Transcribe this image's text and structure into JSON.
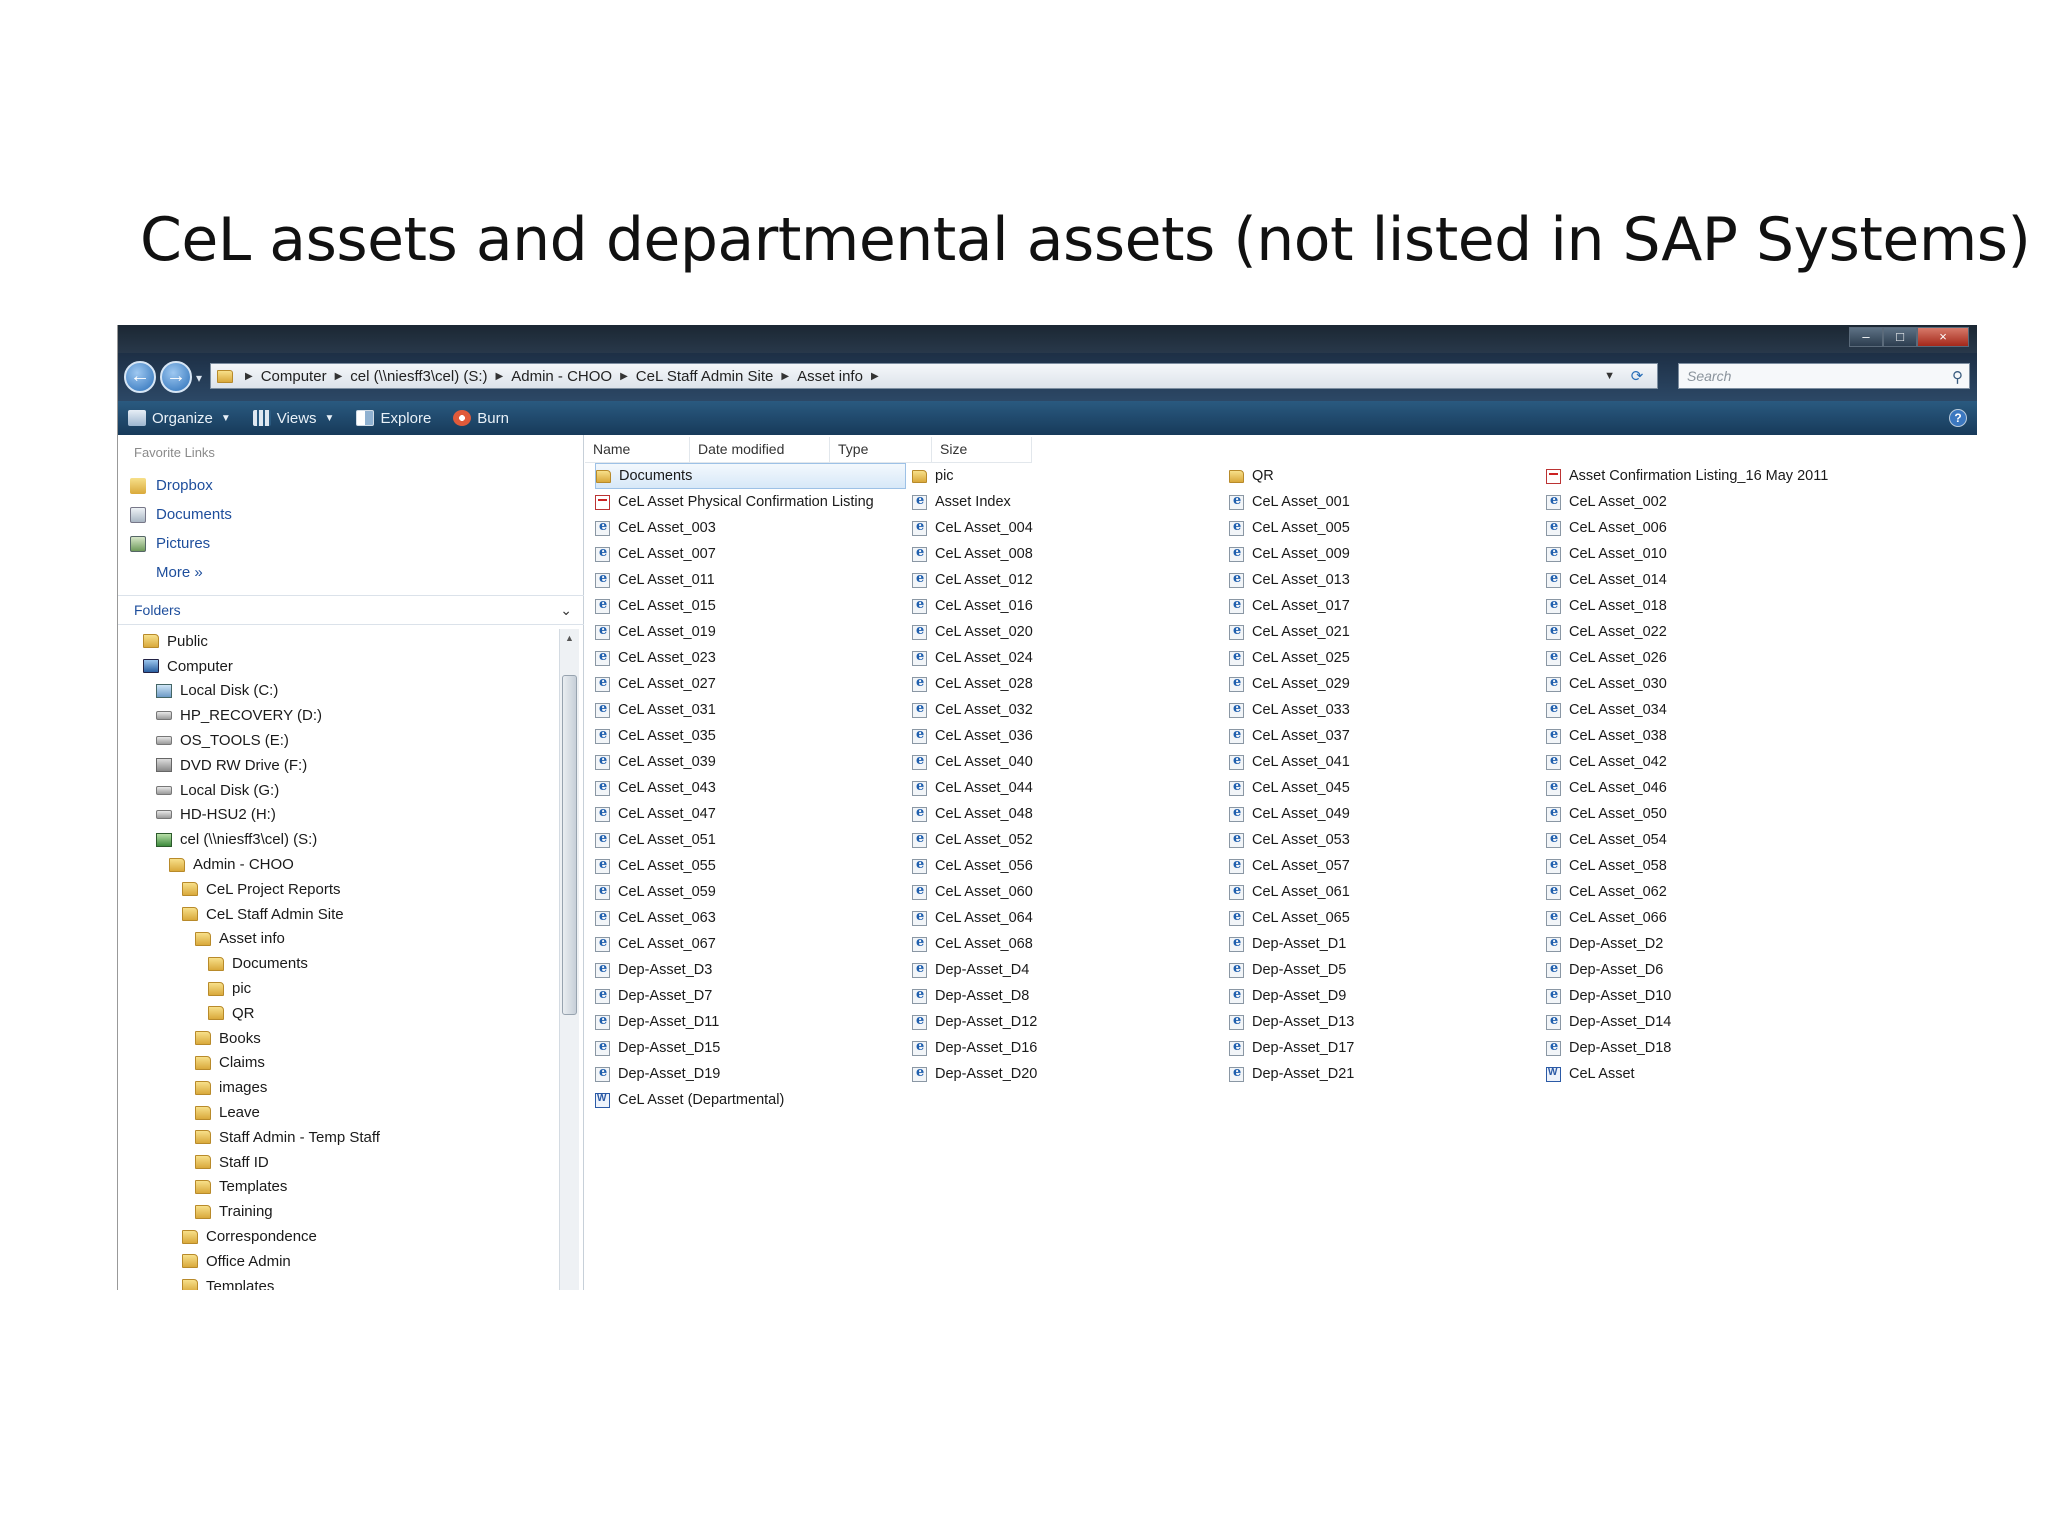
{
  "slide": {
    "title": "CeL assets and departmental assets (not listed in SAP Systems)"
  },
  "window": {
    "controls": {
      "minimize": "–",
      "maximize": "□",
      "close": "×"
    },
    "nav": {
      "back": "←",
      "forward": "→",
      "recent": "▾"
    },
    "breadcrumbs": [
      "Computer",
      "cel (\\\\niesff3\\cel) (S:)",
      "Admin - CHOO",
      "CeL Staff Admin Site",
      "Asset info"
    ],
    "search_placeholder": "Search",
    "toolbar": {
      "organize": "Organize",
      "views": "Views",
      "explore": "Explore",
      "burn": "Burn",
      "help": "?"
    },
    "favorites": {
      "title": "Favorite Links",
      "items": [
        "Dropbox",
        "Documents",
        "Pictures"
      ],
      "more": "More  »"
    },
    "folders_title": "Folders",
    "tree": [
      {
        "label": "Public",
        "indent": 1,
        "icon": "folder"
      },
      {
        "label": "Computer",
        "indent": 1,
        "icon": "computer"
      },
      {
        "label": "Local Disk (C:)",
        "indent": 2,
        "icon": "windisk"
      },
      {
        "label": "HP_RECOVERY (D:)",
        "indent": 2,
        "icon": "drive"
      },
      {
        "label": "OS_TOOLS (E:)",
        "indent": 2,
        "icon": "drive"
      },
      {
        "label": "DVD RW Drive (F:)",
        "indent": 2,
        "icon": "dvd"
      },
      {
        "label": "Local Disk (G:)",
        "indent": 2,
        "icon": "drive"
      },
      {
        "label": "HD-HSU2 (H:)",
        "indent": 2,
        "icon": "drive"
      },
      {
        "label": "cel (\\\\niesff3\\cel) (S:)",
        "indent": 2,
        "icon": "net"
      },
      {
        "label": "Admin - CHOO",
        "indent": 3,
        "icon": "folder"
      },
      {
        "label": "CeL Project Reports",
        "indent": 4,
        "icon": "folder"
      },
      {
        "label": "CeL Staff Admin Site",
        "indent": 4,
        "icon": "folder"
      },
      {
        "label": "Asset info",
        "indent": 5,
        "icon": "folder"
      },
      {
        "label": "Documents",
        "indent": 6,
        "icon": "folder"
      },
      {
        "label": "pic",
        "indent": 6,
        "icon": "folder"
      },
      {
        "label": "QR",
        "indent": 6,
        "icon": "folder"
      },
      {
        "label": "Books",
        "indent": 5,
        "icon": "folder"
      },
      {
        "label": "Claims",
        "indent": 5,
        "icon": "folder"
      },
      {
        "label": "images",
        "indent": 5,
        "icon": "folder"
      },
      {
        "label": "Leave",
        "indent": 5,
        "icon": "folder"
      },
      {
        "label": "Staff Admin - Temp Staff",
        "indent": 5,
        "icon": "folder"
      },
      {
        "label": "Staff ID",
        "indent": 5,
        "icon": "folder"
      },
      {
        "label": "Templates",
        "indent": 5,
        "icon": "folder"
      },
      {
        "label": "Training",
        "indent": 5,
        "icon": "folder"
      },
      {
        "label": "Correspondence",
        "indent": 4,
        "icon": "folder"
      },
      {
        "label": "Office Admin",
        "indent": 4,
        "icon": "folder"
      },
      {
        "label": "Templates",
        "indent": 4,
        "icon": "folder"
      }
    ],
    "columns": [
      "Name",
      "Date modified",
      "Type",
      "Size"
    ],
    "files": [
      {
        "name": "Documents",
        "type": "folder",
        "selected": true
      },
      {
        "name": "pic",
        "type": "folder"
      },
      {
        "name": "QR",
        "type": "folder"
      },
      {
        "name": "Asset Confirmation Listing_16 May 2011",
        "type": "pdf"
      },
      {
        "name": "CeL Asset Physical Confirmation Listing",
        "type": "pdf"
      },
      {
        "name": "Asset Index",
        "type": "html"
      },
      {
        "name": "CeL Asset_001",
        "type": "html"
      },
      {
        "name": "CeL Asset_002",
        "type": "html"
      },
      {
        "name": "CeL Asset_003",
        "type": "html"
      },
      {
        "name": "CeL Asset_004",
        "type": "html"
      },
      {
        "name": "CeL Asset_005",
        "type": "html"
      },
      {
        "name": "CeL Asset_006",
        "type": "html"
      },
      {
        "name": "CeL Asset_007",
        "type": "html"
      },
      {
        "name": "CeL Asset_008",
        "type": "html"
      },
      {
        "name": "CeL Asset_009",
        "type": "html"
      },
      {
        "name": "CeL Asset_010",
        "type": "html"
      },
      {
        "name": "CeL Asset_011",
        "type": "html"
      },
      {
        "name": "CeL Asset_012",
        "type": "html"
      },
      {
        "name": "CeL Asset_013",
        "type": "html"
      },
      {
        "name": "CeL Asset_014",
        "type": "html"
      },
      {
        "name": "CeL Asset_015",
        "type": "html"
      },
      {
        "name": "CeL Asset_016",
        "type": "html"
      },
      {
        "name": "CeL Asset_017",
        "type": "html"
      },
      {
        "name": "CeL Asset_018",
        "type": "html"
      },
      {
        "name": "CeL Asset_019",
        "type": "html"
      },
      {
        "name": "CeL Asset_020",
        "type": "html"
      },
      {
        "name": "CeL Asset_021",
        "type": "html"
      },
      {
        "name": "CeL Asset_022",
        "type": "html"
      },
      {
        "name": "CeL Asset_023",
        "type": "html"
      },
      {
        "name": "CeL Asset_024",
        "type": "html"
      },
      {
        "name": "CeL Asset_025",
        "type": "html"
      },
      {
        "name": "CeL Asset_026",
        "type": "html"
      },
      {
        "name": "CeL Asset_027",
        "type": "html"
      },
      {
        "name": "CeL Asset_028",
        "type": "html"
      },
      {
        "name": "CeL Asset_029",
        "type": "html"
      },
      {
        "name": "CeL Asset_030",
        "type": "html"
      },
      {
        "name": "CeL Asset_031",
        "type": "html"
      },
      {
        "name": "CeL Asset_032",
        "type": "html"
      },
      {
        "name": "CeL Asset_033",
        "type": "html"
      },
      {
        "name": "CeL Asset_034",
        "type": "html"
      },
      {
        "name": "CeL Asset_035",
        "type": "html"
      },
      {
        "name": "CeL Asset_036",
        "type": "html"
      },
      {
        "name": "CeL Asset_037",
        "type": "html"
      },
      {
        "name": "CeL Asset_038",
        "type": "html"
      },
      {
        "name": "CeL Asset_039",
        "type": "html"
      },
      {
        "name": "CeL Asset_040",
        "type": "html"
      },
      {
        "name": "CeL Asset_041",
        "type": "html"
      },
      {
        "name": "CeL Asset_042",
        "type": "html"
      },
      {
        "name": "CeL Asset_043",
        "type": "html"
      },
      {
        "name": "CeL Asset_044",
        "type": "html"
      },
      {
        "name": "CeL Asset_045",
        "type": "html"
      },
      {
        "name": "CeL Asset_046",
        "type": "html"
      },
      {
        "name": "CeL Asset_047",
        "type": "html"
      },
      {
        "name": "CeL Asset_048",
        "type": "html"
      },
      {
        "name": "CeL Asset_049",
        "type": "html"
      },
      {
        "name": "CeL Asset_050",
        "type": "html"
      },
      {
        "name": "CeL Asset_051",
        "type": "html"
      },
      {
        "name": "CeL Asset_052",
        "type": "html"
      },
      {
        "name": "CeL Asset_053",
        "type": "html"
      },
      {
        "name": "CeL Asset_054",
        "type": "html"
      },
      {
        "name": "CeL Asset_055",
        "type": "html"
      },
      {
        "name": "CeL Asset_056",
        "type": "html"
      },
      {
        "name": "CeL Asset_057",
        "type": "html"
      },
      {
        "name": "CeL Asset_058",
        "type": "html"
      },
      {
        "name": "CeL Asset_059",
        "type": "html"
      },
      {
        "name": "CeL Asset_060",
        "type": "html"
      },
      {
        "name": "CeL Asset_061",
        "type": "html"
      },
      {
        "name": "CeL Asset_062",
        "type": "html"
      },
      {
        "name": "CeL Asset_063",
        "type": "html"
      },
      {
        "name": "CeL Asset_064",
        "type": "html"
      },
      {
        "name": "CeL Asset_065",
        "type": "html"
      },
      {
        "name": "CeL Asset_066",
        "type": "html"
      },
      {
        "name": "CeL Asset_067",
        "type": "html"
      },
      {
        "name": "CeL Asset_068",
        "type": "html"
      },
      {
        "name": "Dep-Asset_D1",
        "type": "html"
      },
      {
        "name": "Dep-Asset_D2",
        "type": "html"
      },
      {
        "name": "Dep-Asset_D3",
        "type": "html"
      },
      {
        "name": "Dep-Asset_D4",
        "type": "html"
      },
      {
        "name": "Dep-Asset_D5",
        "type": "html"
      },
      {
        "name": "Dep-Asset_D6",
        "type": "html"
      },
      {
        "name": "Dep-Asset_D7",
        "type": "html"
      },
      {
        "name": "Dep-Asset_D8",
        "type": "html"
      },
      {
        "name": "Dep-Asset_D9",
        "type": "html"
      },
      {
        "name": "Dep-Asset_D10",
        "type": "html"
      },
      {
        "name": "Dep-Asset_D11",
        "type": "html"
      },
      {
        "name": "Dep-Asset_D12",
        "type": "html"
      },
      {
        "name": "Dep-Asset_D13",
        "type": "html"
      },
      {
        "name": "Dep-Asset_D14",
        "type": "html"
      },
      {
        "name": "Dep-Asset_D15",
        "type": "html"
      },
      {
        "name": "Dep-Asset_D16",
        "type": "html"
      },
      {
        "name": "Dep-Asset_D17",
        "type": "html"
      },
      {
        "name": "Dep-Asset_D18",
        "type": "html"
      },
      {
        "name": "Dep-Asset_D19",
        "type": "html"
      },
      {
        "name": "Dep-Asset_D20",
        "type": "html"
      },
      {
        "name": "Dep-Asset_D21",
        "type": "html"
      },
      {
        "name": "CeL Asset",
        "type": "word"
      },
      {
        "name": "CeL Asset (Departmental)",
        "type": "word"
      }
    ]
  }
}
